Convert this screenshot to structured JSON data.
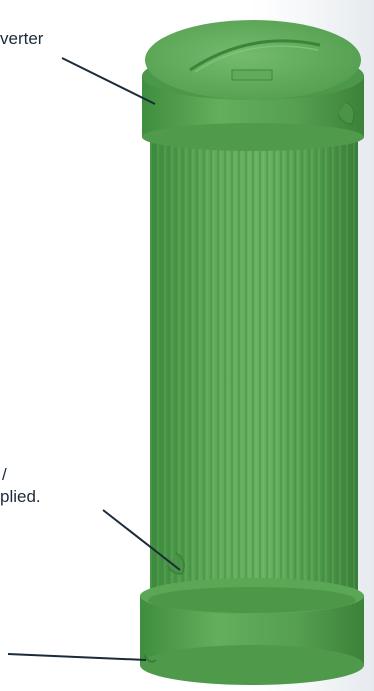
{
  "callouts": {
    "top": "verter",
    "middle_line1": "/",
    "middle_line2": "plied."
  },
  "colors": {
    "background": "#ffffff",
    "body_green": "#5aa857",
    "body_dark": "#3f8a3f",
    "body_light": "#7cc275",
    "ring_green": "#54a350",
    "leader_line": "#1c2b3a"
  }
}
